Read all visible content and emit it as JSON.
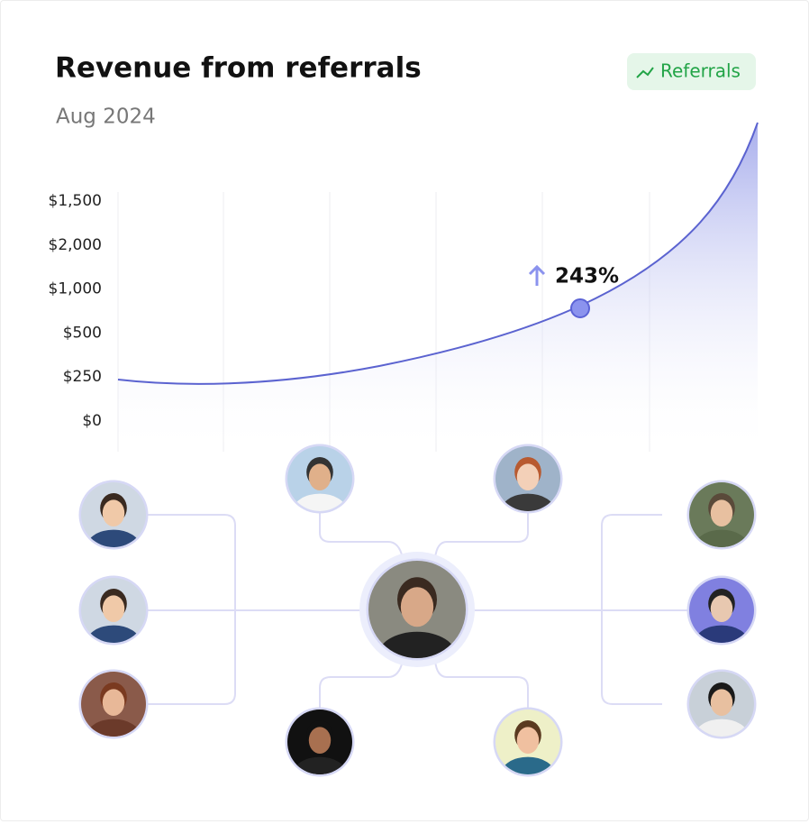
{
  "header": {
    "title": "Revenue from referrals",
    "subtitle": "Aug 2024",
    "badge": "Referrals"
  },
  "chart": {
    "axis_labels": [
      "$1,500",
      "$2,000",
      "$1,000",
      "$500",
      "$250",
      "$0"
    ],
    "annotation": "243%"
  }
}
